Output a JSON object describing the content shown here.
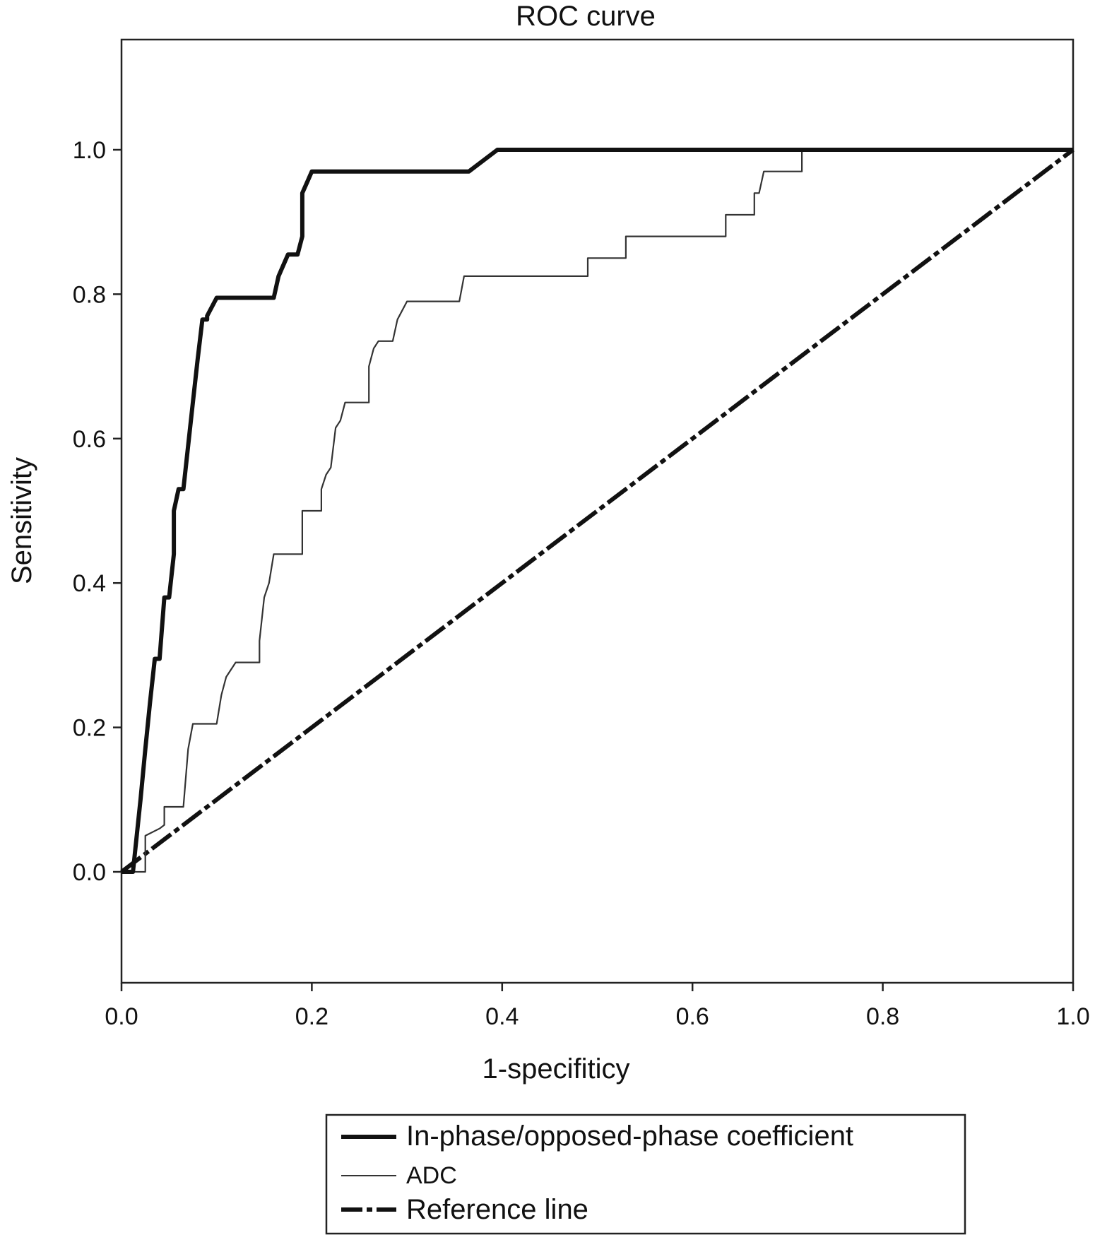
{
  "chart_data": {
    "type": "line",
    "title": "ROC curve",
    "xlabel": "1-specifiticy",
    "ylabel": "Sensitivity",
    "xlim": [
      0,
      1
    ],
    "ylim": [
      -0.15,
      1.15
    ],
    "xticks": [
      0.0,
      0.2,
      0.4,
      0.6,
      0.8,
      1.0
    ],
    "xtick_labels": [
      "0.0",
      "0.2",
      "0.4",
      "0.6",
      "0.8",
      "1.0"
    ],
    "yticks": [
      0.0,
      0.2,
      0.4,
      0.6,
      0.8,
      1.0
    ],
    "ytick_labels": [
      "0.0",
      "0.2",
      "0.4",
      "0.6",
      "0.8",
      "1.0"
    ],
    "grid": false,
    "legend_position": "bottom-right, below plot",
    "series": [
      {
        "name": "In-phase/opposed-phase coefficient",
        "style": "thick-solid",
        "color": "#111111",
        "x": [
          0.0,
          0.012,
          0.02,
          0.025,
          0.03,
          0.035,
          0.04,
          0.045,
          0.05,
          0.055,
          0.055,
          0.06,
          0.065,
          0.07,
          0.07,
          0.075,
          0.08,
          0.085,
          0.09,
          0.09,
          0.1,
          0.16,
          0.165,
          0.17,
          0.175,
          0.185,
          0.19,
          0.19,
          0.195,
          0.2,
          0.21,
          0.365,
          0.395,
          1.0
        ],
        "y": [
          0.0,
          0.0,
          0.1,
          0.17,
          0.235,
          0.295,
          0.295,
          0.38,
          0.38,
          0.44,
          0.5,
          0.53,
          0.53,
          0.59,
          0.59,
          0.65,
          0.71,
          0.765,
          0.765,
          0.77,
          0.795,
          0.795,
          0.825,
          0.84,
          0.855,
          0.855,
          0.88,
          0.94,
          0.955,
          0.97,
          0.97,
          0.97,
          1.0,
          1.0
        ]
      },
      {
        "name": "ADC",
        "style": "thin-solid",
        "color": "#333333",
        "x": [
          0.0,
          0.025,
          0.025,
          0.04,
          0.045,
          0.045,
          0.065,
          0.07,
          0.075,
          0.1,
          0.105,
          0.11,
          0.12,
          0.145,
          0.145,
          0.15,
          0.155,
          0.16,
          0.19,
          0.19,
          0.21,
          0.21,
          0.215,
          0.22,
          0.225,
          0.23,
          0.235,
          0.24,
          0.26,
          0.26,
          0.265,
          0.27,
          0.285,
          0.29,
          0.3,
          0.355,
          0.36,
          0.49,
          0.49,
          0.53,
          0.53,
          0.635,
          0.635,
          0.665,
          0.665,
          0.67,
          0.675,
          0.715,
          0.715,
          1.0
        ],
        "y": [
          0.0,
          0.0,
          0.05,
          0.06,
          0.065,
          0.09,
          0.09,
          0.17,
          0.205,
          0.205,
          0.245,
          0.27,
          0.29,
          0.29,
          0.32,
          0.38,
          0.4,
          0.44,
          0.44,
          0.5,
          0.5,
          0.53,
          0.55,
          0.56,
          0.615,
          0.625,
          0.65,
          0.65,
          0.65,
          0.7,
          0.725,
          0.735,
          0.735,
          0.765,
          0.79,
          0.79,
          0.825,
          0.825,
          0.85,
          0.85,
          0.88,
          0.88,
          0.91,
          0.91,
          0.94,
          0.94,
          0.97,
          0.97,
          1.0,
          1.0
        ]
      },
      {
        "name": "Reference line",
        "style": "thick-dashed",
        "color": "#111111",
        "x": [
          0.0,
          1.0
        ],
        "y": [
          0.0,
          1.0
        ]
      }
    ]
  }
}
